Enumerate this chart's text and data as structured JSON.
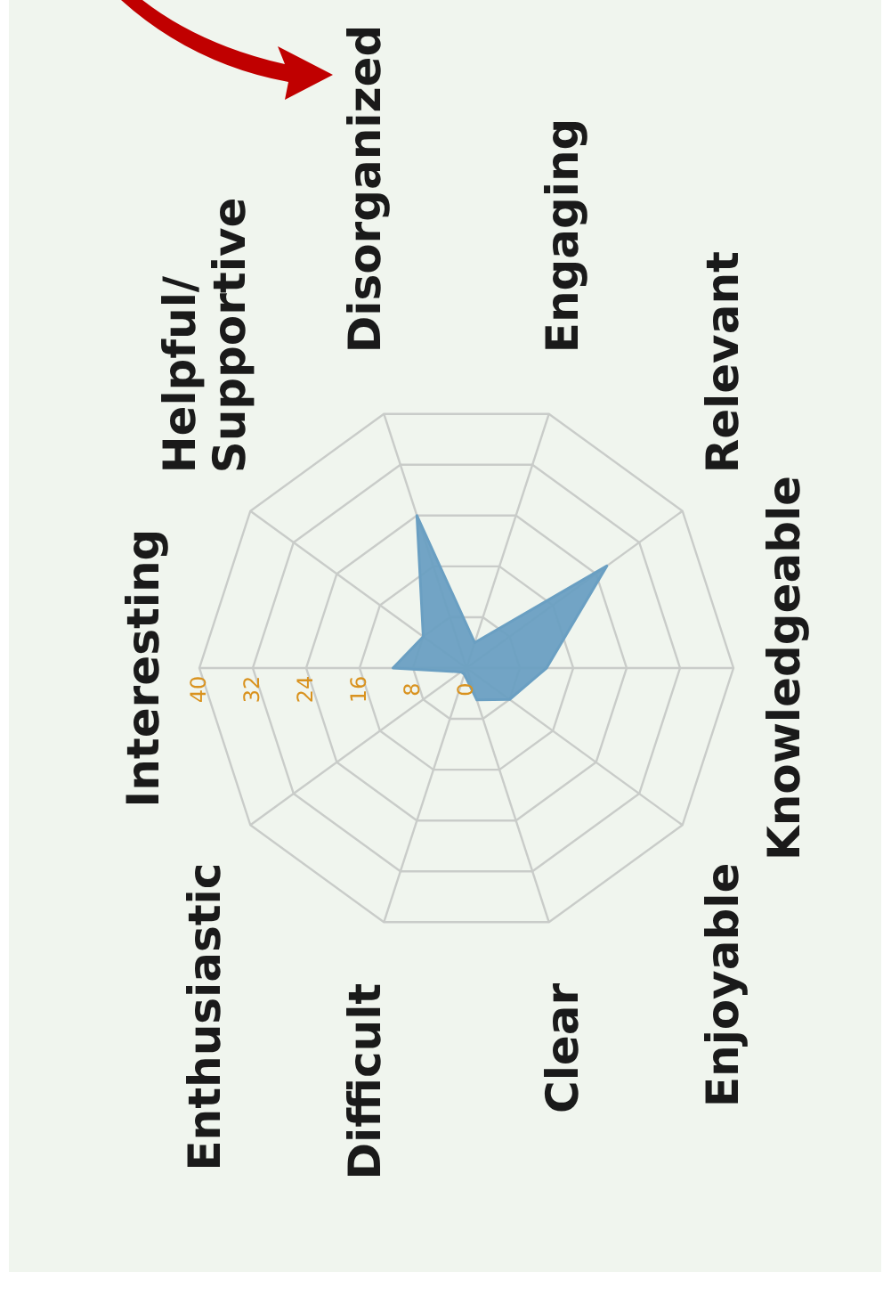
{
  "chart_data": {
    "type": "radar",
    "categories": [
      "Engaging",
      "Relevant",
      "Knowledgeable",
      "Enjoyable",
      "Clear",
      "Difficult",
      "Enthusiastic",
      "Interesting",
      "Helpful/\nSupportive",
      "Disorganized"
    ],
    "series": [
      {
        "color": "#6a9fc2",
        "values": [
          4,
          26,
          12,
          8,
          5,
          1,
          1,
          11,
          8,
          24
        ]
      }
    ],
    "ylim": [
      0,
      40
    ],
    "yticks": [
      0,
      8,
      16,
      24,
      32,
      40
    ],
    "grid": true
  }
}
